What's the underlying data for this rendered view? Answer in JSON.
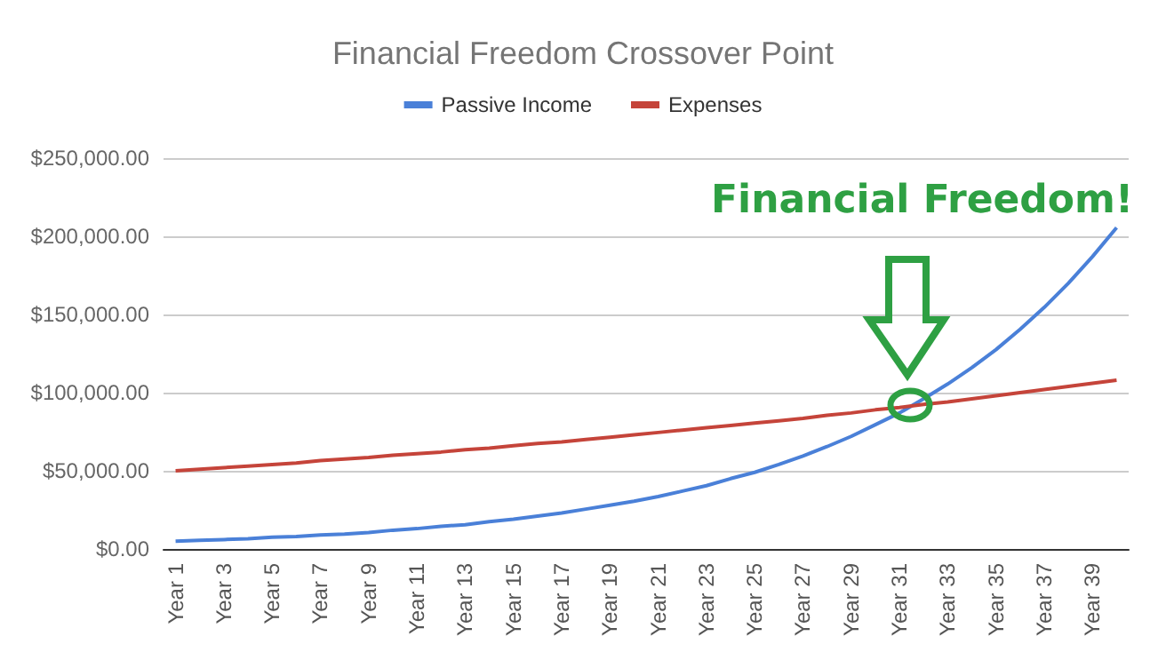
{
  "chart_data": {
    "type": "line",
    "title": "Financial Freedom Crossover Point",
    "categories": [
      "Year 1",
      null,
      "Year 3",
      null,
      "Year 5",
      null,
      "Year 7",
      null,
      "Year 9",
      null,
      "Year 11",
      null,
      "Year 13",
      null,
      "Year 15",
      null,
      "Year 17",
      null,
      "Year 19",
      null,
      "Year 21",
      null,
      "Year 23",
      null,
      "Year 25",
      null,
      "Year 27",
      null,
      "Year 29",
      null,
      "Year 31",
      null,
      "Year 33",
      null,
      "Year 35",
      null,
      "Year 37",
      null,
      "Year 39",
      null
    ],
    "series": [
      {
        "name": "Passive Income",
        "color": "#4a80d8",
        "values": [
          5000,
          5500,
          6000,
          6500,
          7500,
          8000,
          9000,
          9500,
          10500,
          12000,
          13000,
          14500,
          15500,
          17500,
          19000,
          21000,
          23000,
          25500,
          28000,
          30500,
          33500,
          37000,
          40500,
          45000,
          49000,
          54000,
          59500,
          65500,
          72000,
          79500,
          87000,
          96000,
          105500,
          116000,
          127500,
          140500,
          154500,
          170000,
          187000,
          205500
        ]
      },
      {
        "name": "Expenses",
        "color": "#c5443a",
        "values": [
          50000,
          51000,
          52000,
          53000,
          54000,
          55000,
          56500,
          57500,
          58500,
          60000,
          61000,
          62000,
          63500,
          64500,
          66000,
          67500,
          68500,
          70000,
          71500,
          73000,
          74500,
          76000,
          77500,
          79000,
          80500,
          82000,
          83500,
          85500,
          87000,
          89000,
          90500,
          92500,
          94000,
          96000,
          98000,
          100000,
          102000,
          104000,
          106000,
          108000
        ]
      }
    ],
    "ylim": [
      0,
      250000
    ],
    "yticks": [
      {
        "value": 0,
        "label": "$0.00"
      },
      {
        "value": 50000,
        "label": "$50,000.00"
      },
      {
        "value": 100000,
        "label": "$100,000.00"
      },
      {
        "value": 150000,
        "label": "$150,000.00"
      },
      {
        "value": 200000,
        "label": "$200,000.00"
      },
      {
        "value": 250000,
        "label": "$250,000.00"
      }
    ],
    "grid": "y",
    "legend": "top",
    "marker": "none",
    "line_style": "solid",
    "annotations": [
      "Financial Freedom!"
    ]
  }
}
